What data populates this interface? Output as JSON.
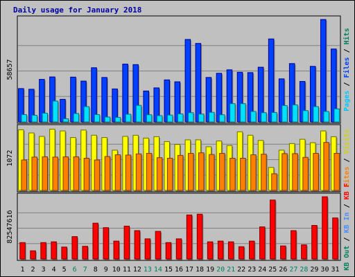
{
  "chart_data": {
    "type": "bar",
    "title": "Daily usage for January 2018",
    "categories": [
      "1",
      "2",
      "3",
      "4",
      "5",
      "6",
      "7",
      "8",
      "9",
      "10",
      "11",
      "12",
      "13",
      "14",
      "15",
      "16",
      "17",
      "18",
      "19",
      "20",
      "21",
      "22",
      "23",
      "24",
      "25",
      "26",
      "27",
      "28",
      "29",
      "30",
      "31"
    ],
    "weekend_days": [
      "6",
      "7",
      "13",
      "14",
      "20",
      "21",
      "27",
      "28"
    ],
    "panels": [
      {
        "id": "hits",
        "max_label": "58657",
        "ymax": 58657,
        "side_labels": [
          {
            "text": "Hits",
            "color": "#00805c"
          },
          {
            "text": " / ",
            "color": "#000000"
          },
          {
            "text": "Files",
            "color": "#0040ff"
          },
          {
            "text": " / ",
            "color": "#000000"
          },
          {
            "text": "Pages",
            "color": "#00c8ff"
          }
        ],
        "series": [
          {
            "name": "Hits",
            "color": "#0040ff",
            "border": "#00008b",
            "values": [
              19200,
              18800,
              24500,
              25900,
              13000,
              25800,
              23500,
              31200,
              25600,
              19000,
              33300,
              33000,
              17800,
              19600,
              24200,
              23100,
              47500,
              45200,
              25600,
              28000,
              30000,
              28600,
              28400,
              31500,
              47800,
              24800,
              33600,
              23300,
              32000,
              59000,
              42000
            ]
          },
          {
            "name": "Pages",
            "color": "#00e0ff",
            "border": "#006f86",
            "values": [
              4200,
              3800,
              5000,
              12000,
              1800,
              4800,
              8800,
              4200,
              2800,
              2600,
              4400,
              9500,
              4100,
              3600,
              3900,
              4600,
              5300,
              4500,
              5500,
              4100,
              10500,
              10500,
              6000,
              5300,
              5400,
              9400,
              9800,
              6500,
              8800,
              6000,
              7500
            ]
          }
        ]
      },
      {
        "id": "visits",
        "max_label": "1072",
        "ymax": 1072,
        "side_labels": [
          {
            "text": "Visits",
            "color": "#d2d200"
          },
          {
            "text": " / ",
            "color": "#000000"
          },
          {
            "text": "Sites",
            "color": "#ff8000"
          }
        ],
        "series": [
          {
            "name": "Visits",
            "color": "#ffff00",
            "border": "#6b6b00",
            "values": [
              1055,
              1000,
              940,
              1065,
              1035,
              920,
              1050,
              960,
              920,
              700,
              940,
              960,
              910,
              935,
              850,
              800,
              880,
              880,
              760,
              860,
              780,
              1020,
              960,
              870,
              400,
              700,
              815,
              890,
              830,
              1035,
              935
            ]
          },
          {
            "name": "Sites",
            "color": "#ff8000",
            "border": "#7a3a00",
            "values": [
              530,
              580,
              585,
              580,
              585,
              585,
              560,
              530,
              590,
              620,
              615,
              635,
              645,
              570,
              560,
              610,
              645,
              655,
              625,
              645,
              560,
              560,
              620,
              630,
              290,
              640,
              640,
              575,
              645,
              835,
              645
            ]
          }
        ]
      },
      {
        "id": "kbytes",
        "max_label": "8254761б",
        "ymax": 8254761,
        "side_labels": [
          {
            "text": "KB F",
            "color": "#ff0000"
          },
          {
            "text": " / ",
            "color": "#000000"
          },
          {
            "text": "KB In",
            "color": "#4c8cff"
          },
          {
            "text": " / ",
            "color": "#000000"
          },
          {
            "text": "KB Out",
            "color": "#00805c"
          }
        ],
        "series": [
          {
            "name": "KB F",
            "color": "#ff0000",
            "border": "#7a0000",
            "values": [
              2200000,
              1100000,
              2200000,
              2300000,
              1600000,
              3000000,
              1700000,
              4800000,
              4200000,
              2400000,
              4400000,
              3800000,
              2700000,
              3700000,
              2200000,
              2700000,
              5900000,
              6000000,
              2300000,
              2400000,
              2300000,
              1650000,
              2400000,
              4300000,
              7900000,
              1750000,
              3800000,
              1900000,
              4500000,
              8600000,
              5500000
            ]
          }
        ]
      }
    ]
  }
}
